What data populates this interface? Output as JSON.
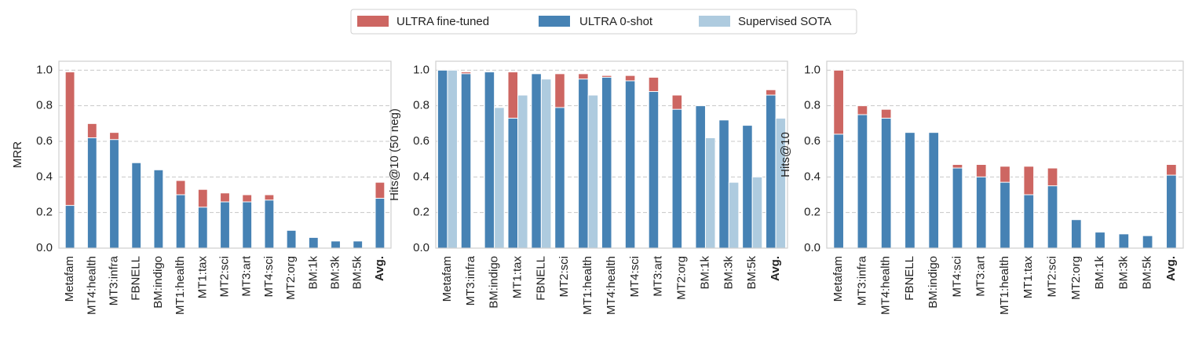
{
  "chart_data": [
    {
      "type": "bar",
      "y_label": "MRR",
      "categories": [
        "Metafam",
        "MT4:health",
        "MT3:infra",
        "FBNELL",
        "BM:indigo",
        "MT1:health",
        "MT1:tax",
        "MT2:sci",
        "MT3:art",
        "MT4:sci",
        "MT2:org",
        "BM:1k",
        "BM:3k",
        "BM:5k",
        "Avg."
      ],
      "series": [
        {
          "name": "ULTRA fine-tuned",
          "color": "#cd6662",
          "values": [
            0.99,
            0.7,
            0.65,
            null,
            null,
            0.38,
            0.33,
            0.31,
            0.3,
            0.3,
            null,
            null,
            null,
            null,
            0.37
          ]
        },
        {
          "name": "ULTRA 0-shot",
          "color": "#4682b4",
          "values": [
            0.24,
            0.62,
            0.61,
            0.48,
            0.44,
            0.3,
            0.23,
            0.26,
            0.26,
            0.27,
            0.1,
            0.06,
            0.04,
            0.04,
            0.28
          ]
        }
      ],
      "ylim": [
        0,
        1.05
      ],
      "yticks": [
        {
          "value": 0,
          "label": "0.0"
        },
        0.2,
        0.4,
        0.6,
        0.8,
        {
          "value": 1,
          "label": "1.0"
        }
      ],
      "grid": true
    },
    {
      "type": "bar",
      "y_label": "Hits@10 (50 neg)",
      "categories": [
        "Metafam",
        "MT3:infra",
        "BM:indigo",
        "MT1:tax",
        "FBNELL",
        "MT2:sci",
        "MT1:health",
        "MT4:health",
        "MT4:sci",
        "MT3:art",
        "MT2:org",
        "BM:1k",
        "BM:3k",
        "BM:5k",
        "Avg."
      ],
      "series": [
        {
          "name": "ULTRA fine-tuned",
          "color": "#cd6662",
          "values": [
            null,
            0.99,
            null,
            0.99,
            null,
            0.98,
            0.98,
            0.97,
            0.97,
            0.96,
            0.86,
            null,
            null,
            null,
            0.89
          ]
        },
        {
          "name": "ULTRA 0-shot",
          "color": "#4682b4",
          "values": [
            1.0,
            0.98,
            0.99,
            0.73,
            0.98,
            0.79,
            0.95,
            0.96,
            0.94,
            0.88,
            0.78,
            0.8,
            0.72,
            0.69,
            0.86
          ]
        },
        {
          "name": "Supervised SOTA",
          "color": "#aecbdf",
          "values": [
            1.0,
            null,
            0.79,
            0.86,
            0.95,
            null,
            0.86,
            null,
            null,
            null,
            null,
            0.62,
            0.37,
            0.4,
            0.73
          ]
        }
      ],
      "ylim": [
        0,
        1.05
      ],
      "yticks": [
        {
          "value": 0,
          "label": "0.0"
        },
        0.2,
        0.4,
        0.6,
        0.8,
        {
          "value": 1,
          "label": "1.0"
        }
      ],
      "grid": true
    },
    {
      "type": "bar",
      "y_label": "Hits@10",
      "categories": [
        "Metafam",
        "MT3:infra",
        "MT4:health",
        "FBNELL",
        "BM:indigo",
        "MT4:sci",
        "MT3:art",
        "MT1:health",
        "MT1:tax",
        "MT2:sci",
        "MT2:org",
        "BM:1k",
        "BM:3k",
        "BM:5k",
        "Avg."
      ],
      "series": [
        {
          "name": "ULTRA fine-tuned",
          "color": "#cd6662",
          "values": [
            1.0,
            0.8,
            0.78,
            null,
            null,
            0.47,
            0.47,
            0.46,
            0.46,
            0.45,
            null,
            null,
            null,
            null,
            0.47
          ]
        },
        {
          "name": "ULTRA 0-shot",
          "color": "#4682b4",
          "values": [
            0.64,
            0.75,
            0.73,
            0.65,
            0.65,
            0.45,
            0.4,
            0.37,
            0.3,
            0.35,
            0.16,
            0.09,
            0.08,
            0.07,
            0.41
          ]
        }
      ],
      "ylim": [
        0,
        1.05
      ],
      "yticks": [
        {
          "value": 0,
          "label": "0.0"
        },
        0.2,
        0.4,
        0.6,
        0.8,
        {
          "value": 1,
          "label": "1.0"
        }
      ],
      "grid": true
    }
  ]
}
